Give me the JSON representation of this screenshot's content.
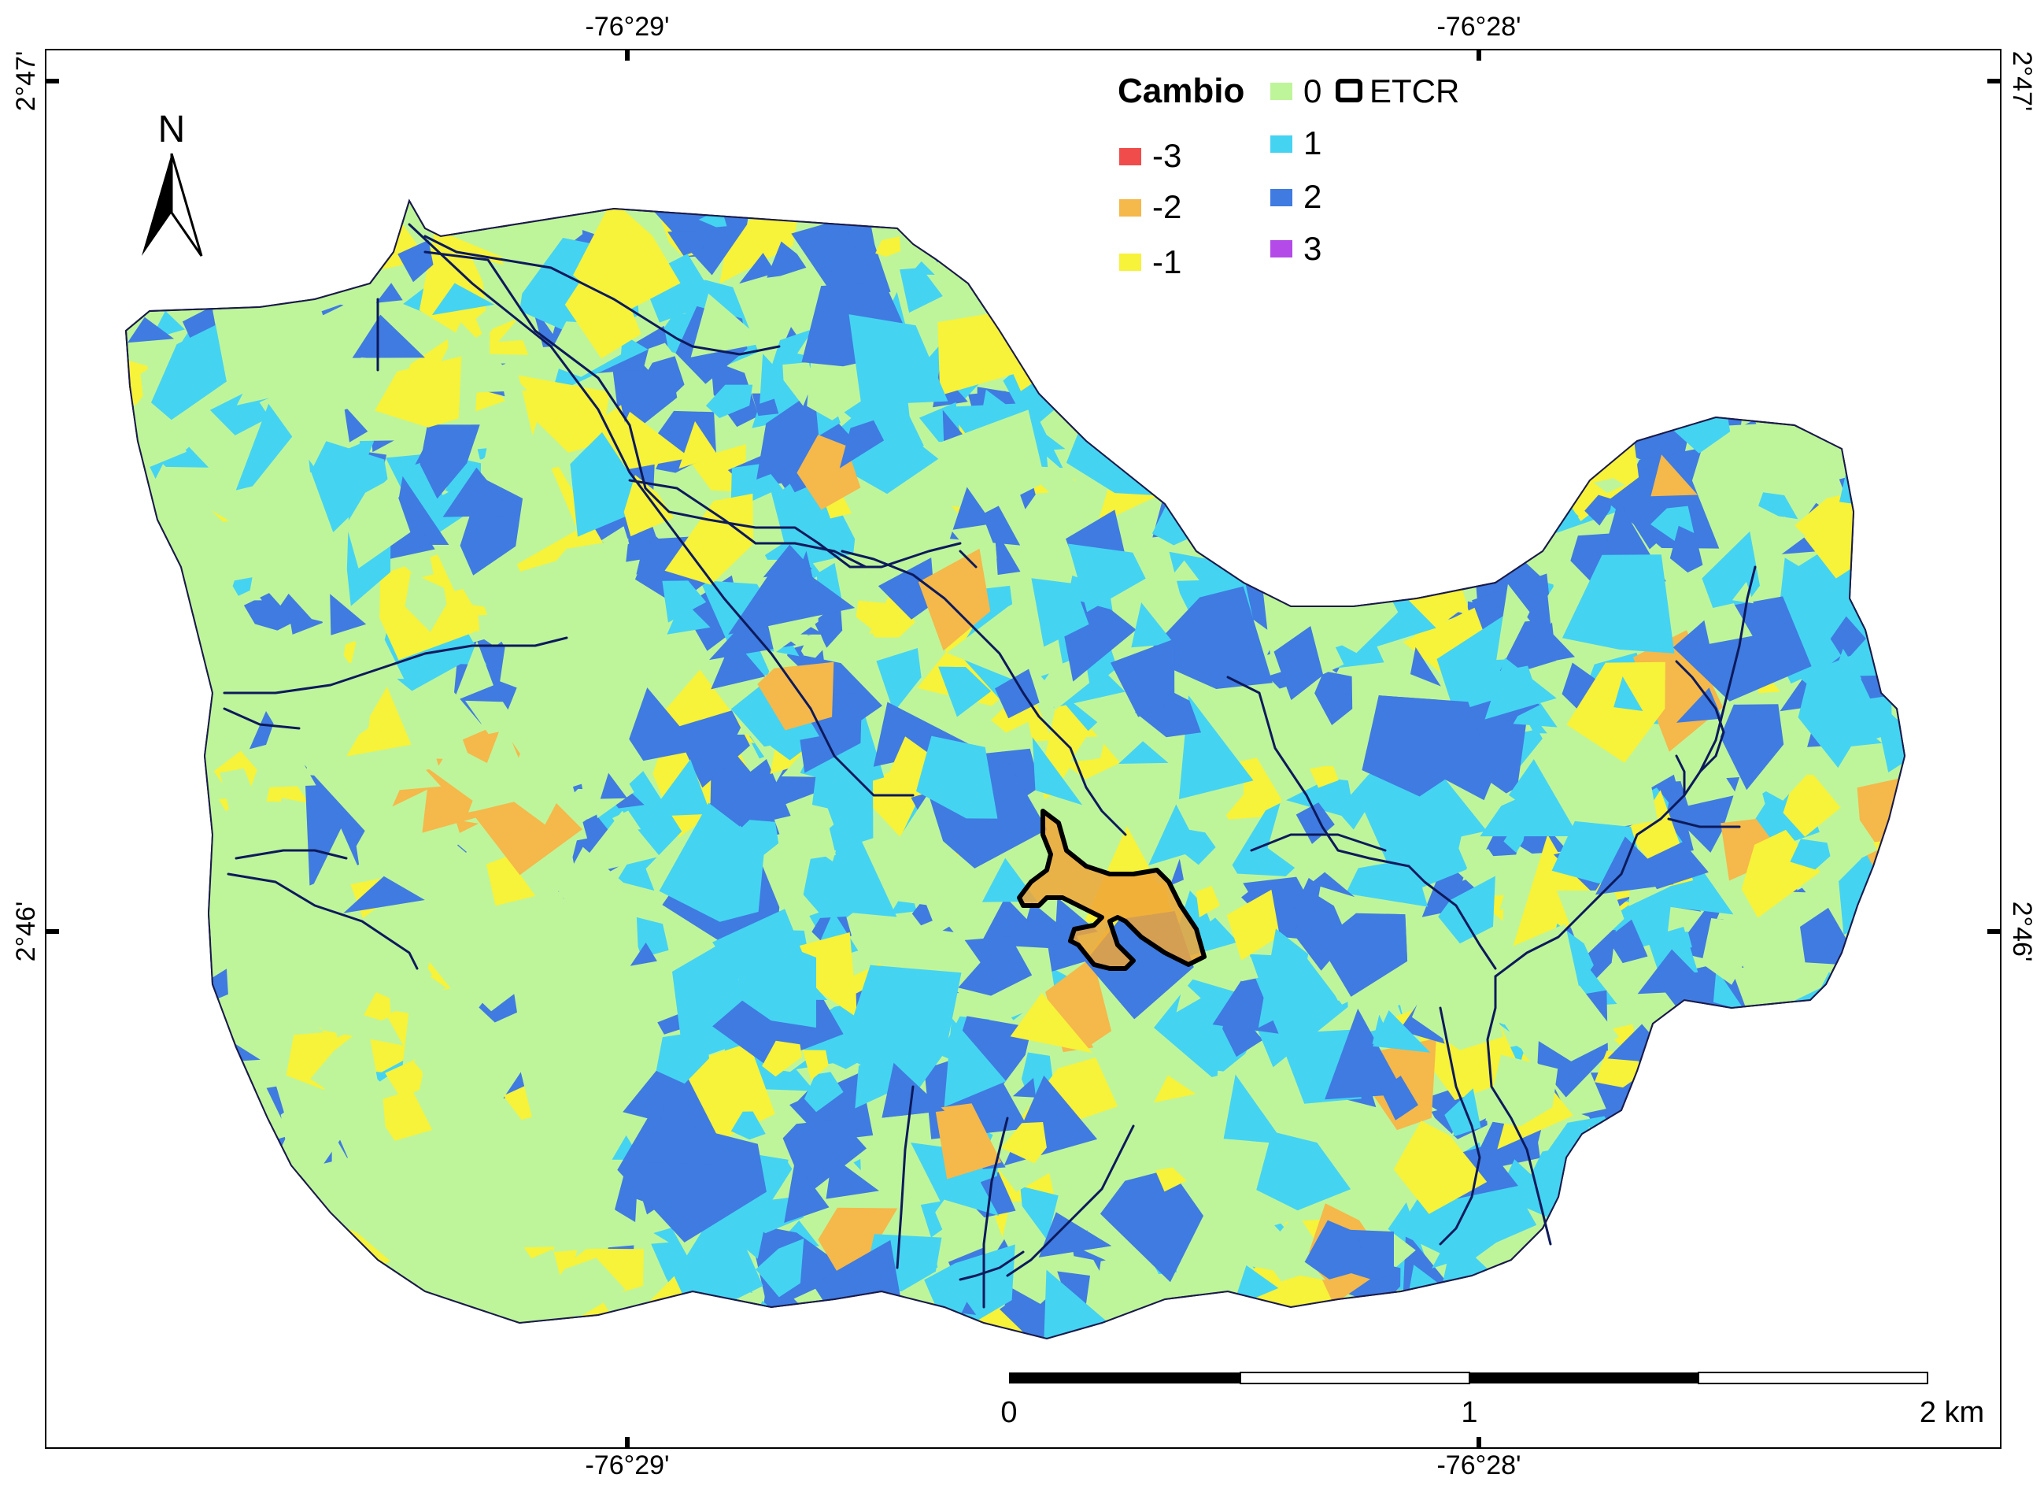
{
  "graticule": {
    "top_ticks": [
      "-76°29'",
      "-76°28'"
    ],
    "bottom_ticks": [
      "-76°29'",
      "-76°28'"
    ],
    "left_ticks": [
      "2°47'",
      "2°46'"
    ],
    "right_ticks": [
      "2°47'",
      "2°46'"
    ]
  },
  "north_arrow": {
    "label": "N"
  },
  "legend": {
    "title": "Cambio",
    "items": [
      {
        "label": "-3",
        "color": "#f04c4c"
      },
      {
        "label": "-2",
        "color": "#f5b84a"
      },
      {
        "label": "-1",
        "color": "#f7f23a"
      },
      {
        "label": "0",
        "color": "#bff59a"
      },
      {
        "label": "1",
        "color": "#45d3f2"
      },
      {
        "label": "2",
        "color": "#3f7be0"
      },
      {
        "label": "3",
        "color": "#b44ae8"
      }
    ],
    "boundary_label": "ETCR"
  },
  "scale_bar": {
    "labels": [
      "0",
      "1",
      "2 km"
    ]
  },
  "colors": {
    "river": "#0d1a5c",
    "etcr_outline": "#000000",
    "etcr_fill": "#f0a63a"
  }
}
